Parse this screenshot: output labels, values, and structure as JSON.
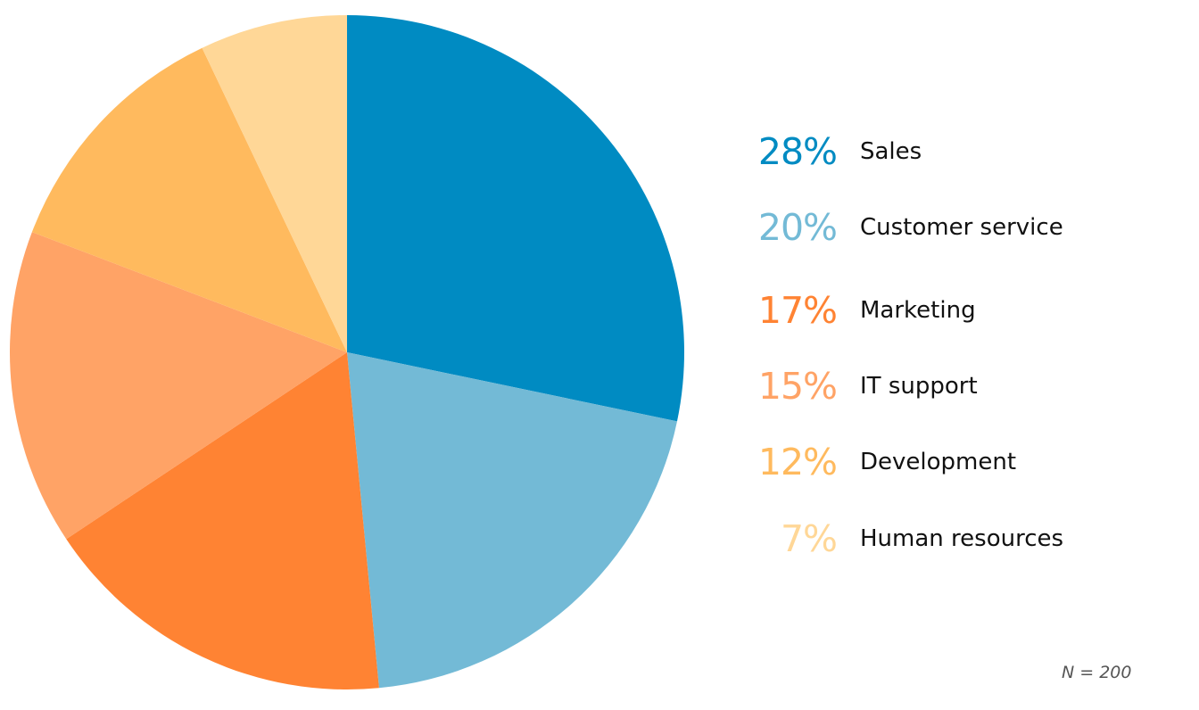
{
  "chart_data": {
    "type": "pie",
    "title": "",
    "slices": [
      {
        "label": "Sales",
        "value": 28,
        "display": "28%",
        "color": "#008BC2"
      },
      {
        "label": "Customer service",
        "value": 20,
        "display": "20%",
        "color": "#73BAD6"
      },
      {
        "label": "Marketing",
        "value": 17,
        "display": "17%",
        "color": "#FF8333"
      },
      {
        "label": "IT support",
        "value": 15,
        "display": "15%",
        "color": "#FFA366"
      },
      {
        "label": "Development",
        "value": 12,
        "display": "12%",
        "color": "#FFBA5E"
      },
      {
        "label": "Human resources",
        "value": 7,
        "display": "7%",
        "color": "#FFD797"
      }
    ],
    "start_angle": "top",
    "direction": "clockwise",
    "legend_placement": "right",
    "note": "N = 200"
  }
}
